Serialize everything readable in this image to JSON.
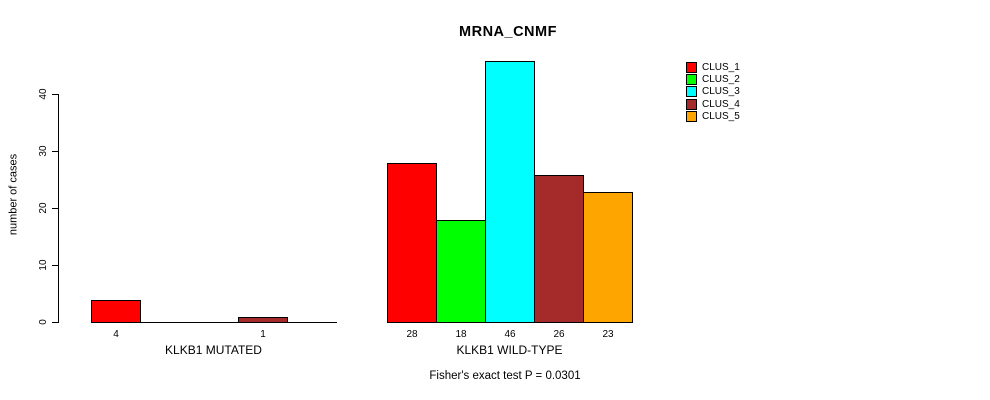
{
  "chart_data": {
    "type": "bar",
    "title": "MRNA_CNMF",
    "ylabel": "number of cases",
    "ylim": [
      0,
      46
    ],
    "yticks": [
      0,
      10,
      20,
      30,
      40
    ],
    "grid": false,
    "legend_position": "right",
    "legend": [
      {
        "name": "CLUS_1",
        "color": "#ff0000"
      },
      {
        "name": "CLUS_2",
        "color": "#00ff00"
      },
      {
        "name": "CLUS_3",
        "color": "#00ffff"
      },
      {
        "name": "CLUS_4",
        "color": "#a52a2a"
      },
      {
        "name": "CLUS_5",
        "color": "#ffa500"
      }
    ],
    "groups": [
      {
        "label": "KLKB1 MUTATED",
        "values": [
          4,
          0,
          0,
          1,
          0
        ]
      },
      {
        "label": "KLKB1 WILD-TYPE",
        "values": [
          28,
          18,
          46,
          26,
          23
        ]
      }
    ],
    "bar_value_labels_shown": [
      "4",
      "1",
      "28",
      "18",
      "46",
      "26",
      "23"
    ],
    "footnote": "Fisher's exact test P = 0.0301"
  },
  "colors": {
    "background": "#ffffff",
    "axis": "#000000",
    "text": "#000000"
  }
}
